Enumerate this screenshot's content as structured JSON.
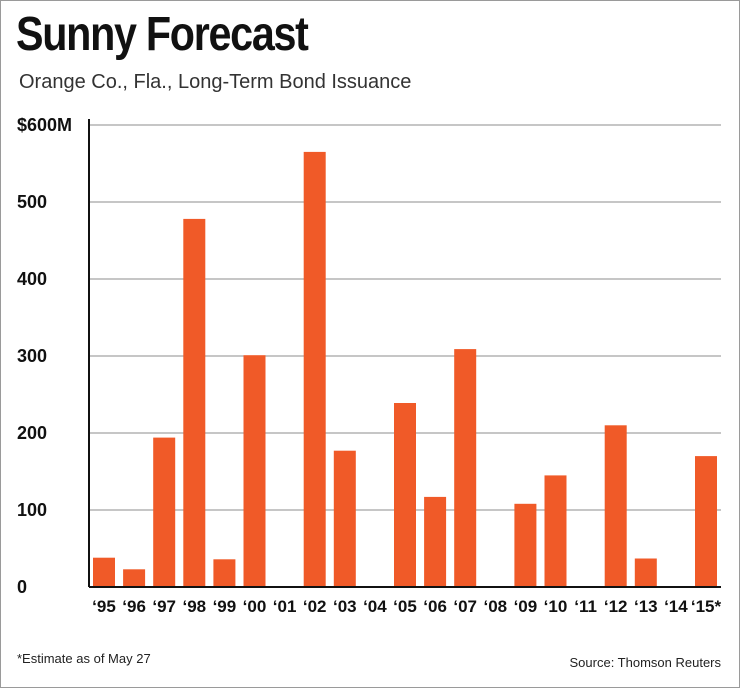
{
  "header": {
    "title": "Sunny Forecast",
    "subtitle": "Orange Co., Fla., Long-Term Bond Issuance"
  },
  "footer": {
    "note": "*Estimate as of May 27",
    "source": "Source: Thomson Reuters"
  },
  "colors": {
    "bar": "#f05a28",
    "grid": "#8c8c8c",
    "axis": "#111111"
  },
  "chart_data": {
    "type": "bar",
    "title": "Sunny Forecast",
    "subtitle": "Orange Co., Fla., Long-Term Bond Issuance",
    "xlabel": "",
    "ylabel": "",
    "units": "$ millions",
    "ylim": [
      0,
      600
    ],
    "yticks": [
      0,
      100,
      200,
      300,
      400,
      500,
      600
    ],
    "ytick_labels": [
      "0",
      "100",
      "200",
      "300",
      "400",
      "500",
      "$600M"
    ],
    "grid": true,
    "categories": [
      "‘95",
      "‘96",
      "‘97",
      "‘98",
      "‘99",
      "‘00",
      "‘01",
      "‘02",
      "‘03",
      "‘04",
      "‘05",
      "‘06",
      "‘07",
      "‘08",
      "‘09",
      "‘10",
      "‘11",
      "‘12",
      "‘13",
      "‘14",
      "‘15*"
    ],
    "values": [
      38,
      23,
      194,
      478,
      36,
      301,
      0,
      565,
      177,
      0,
      239,
      117,
      309,
      0,
      108,
      145,
      0,
      210,
      37,
      0,
      170
    ]
  }
}
